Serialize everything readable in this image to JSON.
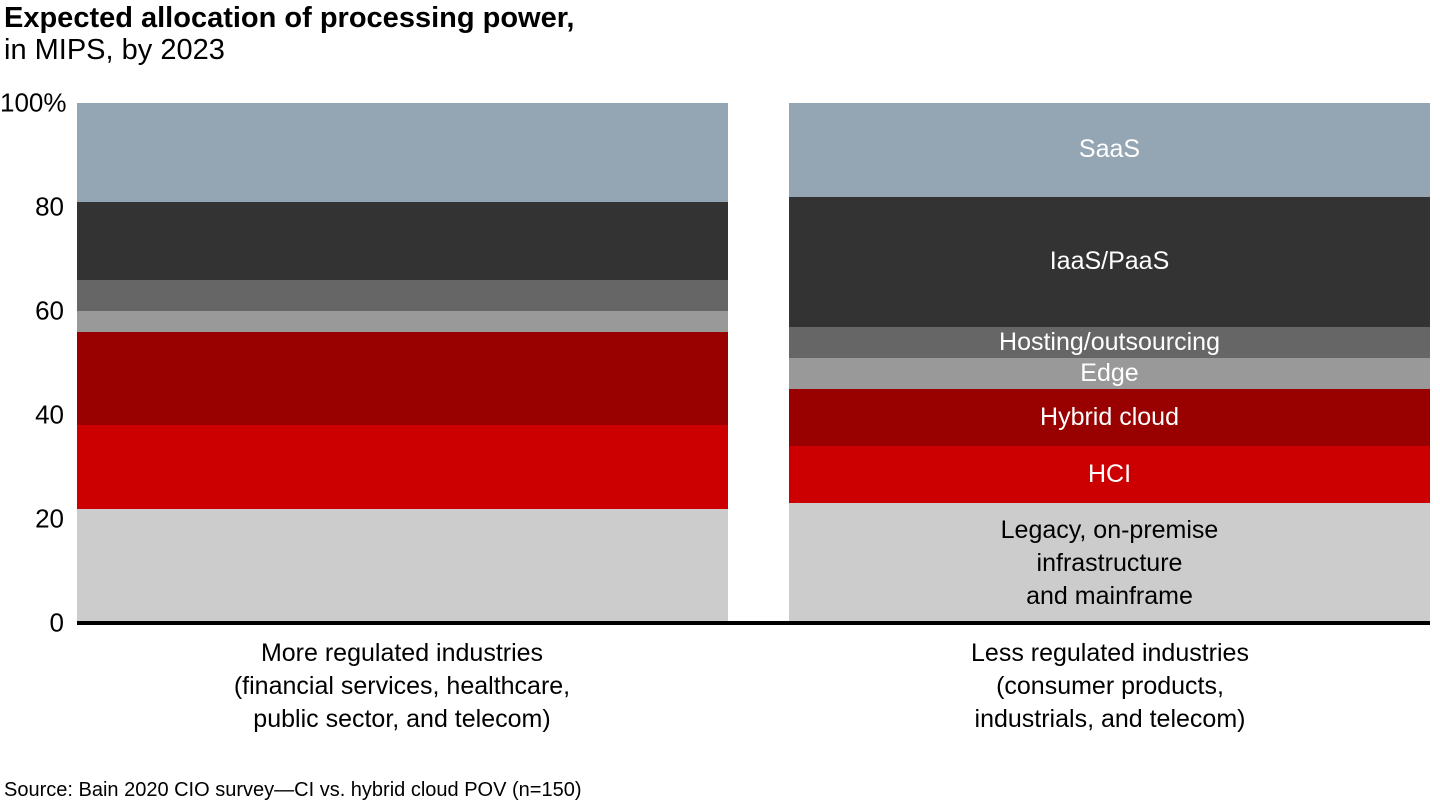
{
  "title": {
    "line1": "Expected allocation of processing power,",
    "line2": "in MIPS, by 2023"
  },
  "source": "Source: Bain 2020 CIO survey—CI vs. hybrid cloud POV (n=150)",
  "y_axis": {
    "ticks": [
      "100%",
      "80",
      "60",
      "40",
      "20",
      "0"
    ],
    "tick_values": [
      100,
      80,
      60,
      40,
      20,
      0
    ]
  },
  "chart_data": {
    "type": "bar",
    "stacked": true,
    "unit": "percent of processing power (MIPS)",
    "title": "Expected allocation of processing power, in MIPS, by 2023",
    "ylim": [
      0,
      100
    ],
    "grid": false,
    "legend": "labels inside right bar only",
    "categories": [
      {
        "key": "more-regulated",
        "label_lines": [
          "More regulated industries",
          "(financial services, healthcare,",
          "public sector, and telecom)"
        ]
      },
      {
        "key": "less-regulated",
        "label_lines": [
          "Less regulated industries",
          "(consumer products,",
          "industrials, and telecom)"
        ]
      }
    ],
    "segments_top_to_bottom": [
      {
        "name": "SaaS",
        "color": "#94A6B4",
        "label_color": "#ffffff",
        "values": [
          19,
          18
        ]
      },
      {
        "name": "IaaS/PaaS",
        "color": "#333333",
        "label_color": "#ffffff",
        "values": [
          15,
          25
        ]
      },
      {
        "name": "Hosting/outsourcing",
        "color": "#666666",
        "label_color": "#ffffff",
        "values": [
          6,
          6
        ]
      },
      {
        "name": "Edge",
        "color": "#999999",
        "label_color": "#ffffff",
        "values": [
          4,
          6
        ]
      },
      {
        "name": "Hybrid cloud",
        "color": "#990000",
        "label_color": "#ffffff",
        "values": [
          18,
          11
        ]
      },
      {
        "name": "HCI",
        "color": "#CC0000",
        "label_color": "#ffffff",
        "values": [
          16,
          11
        ]
      },
      {
        "name": "Legacy, on-premise infrastructure and mainframe",
        "label_lines": [
          "Legacy, on-premise",
          "infrastructure",
          "and mainframe"
        ],
        "color": "#CCCCCC",
        "label_color": "#000000",
        "values": [
          22,
          23
        ]
      }
    ]
  }
}
